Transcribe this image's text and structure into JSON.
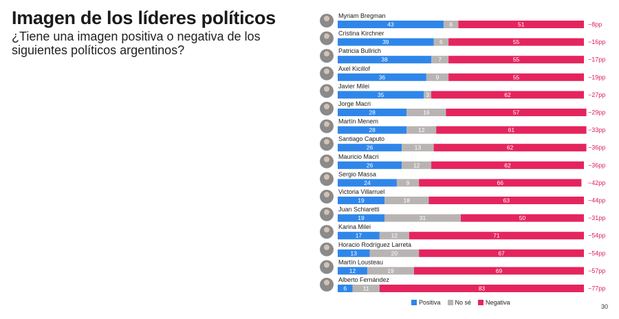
{
  "header": {
    "title": "Imagen de los líderes políticos",
    "subtitle": "¿Tiene una imagen positiva o negativa de los siguientes políticos argentinos?"
  },
  "page_number": "30",
  "colors": {
    "positiva": "#2f86ea",
    "no_se": "#b9b4b4",
    "negativa": "#e5245e",
    "diff": "#d81b60"
  },
  "legend": [
    {
      "label": "Positiva",
      "color": "#2f86ea"
    },
    {
      "label": "No sé",
      "color": "#b9b4b4"
    },
    {
      "label": "Negativa",
      "color": "#e5245e"
    }
  ],
  "chart_data": {
    "type": "bar",
    "stacked": true,
    "orientation": "horizontal",
    "categories": [
      "Myriam Bregman",
      "Cristina Kirchner",
      "Patricia Bullrich",
      "Axel Kicillof",
      "Javier Milei",
      "Jorge Macri",
      "Martín Menem",
      "Santiago Caputo",
      "Mauricio Macri",
      "Sergio Massa",
      "Victoria Villarruel",
      "Juan Schiaretti",
      "Karina Milei",
      "Horacio Rodríguez Larreta",
      "Martín Lousteau",
      "Alberto Fernández"
    ],
    "series": [
      {
        "name": "Positiva",
        "values": [
          43,
          39,
          38,
          36,
          35,
          28,
          28,
          26,
          26,
          24,
          19,
          19,
          17,
          13,
          12,
          6
        ]
      },
      {
        "name": "No sé",
        "values": [
          6,
          6,
          7,
          9,
          3,
          16,
          12,
          13,
          12,
          9,
          18,
          31,
          12,
          20,
          19,
          11
        ]
      },
      {
        "name": "Negativa",
        "values": [
          51,
          55,
          55,
          55,
          62,
          57,
          61,
          62,
          62,
          66,
          63,
          50,
          71,
          67,
          69,
          83
        ]
      }
    ],
    "differences": [
      "−8pp",
      "−16pp",
      "−17pp",
      "−19pp",
      "−27pp",
      "−29pp",
      "−33pp",
      "−36pp",
      "−36pp",
      "−42pp",
      "−44pp",
      "−31pp",
      "−54pp",
      "−54pp",
      "−57pp",
      "−77pp"
    ],
    "xlim": [
      0,
      100
    ],
    "legend_position": "bottom"
  }
}
